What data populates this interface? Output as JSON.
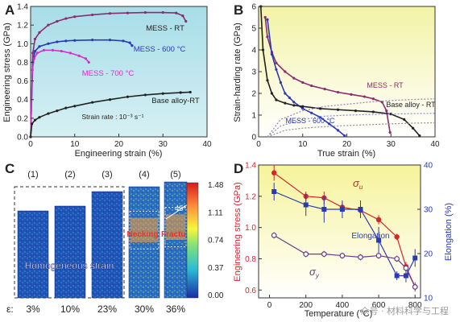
{
  "panels": {
    "A": "A",
    "B": "B",
    "C": "C",
    "D": "D"
  },
  "watermark": "众号 · 材料科学与工程",
  "chart_data": [
    {
      "id": "A",
      "type": "line",
      "xlabel": "Engineering strain (%)",
      "ylabel": "Engineering stress (GPa)",
      "xlim": [
        0,
        40
      ],
      "ylim": [
        0,
        1.4
      ],
      "xticks": [
        "0",
        "10",
        "20",
        "30",
        "40"
      ],
      "yticks": [
        "0.0",
        "0.2",
        "0.4",
        "0.6",
        "0.8",
        "1.0",
        "1.2",
        "1.4"
      ],
      "grid": false,
      "annotation": "Strain rate : 10⁻³ s⁻¹",
      "series": [
        {
          "name": "MESS - RT",
          "color": "#8b2c6e",
          "x": [
            0,
            0.5,
            1,
            2,
            4,
            6,
            8,
            10,
            14,
            18,
            22,
            26,
            30,
            33,
            34.5,
            35.2
          ],
          "y": [
            0,
            0.9,
            1.05,
            1.12,
            1.2,
            1.24,
            1.27,
            1.29,
            1.31,
            1.325,
            1.33,
            1.335,
            1.335,
            1.33,
            1.3,
            1.24
          ]
        },
        {
          "name": "MESS - 600 °C",
          "color": "#2a3ab5",
          "x": [
            0,
            0.5,
            1,
            2,
            4,
            6,
            8,
            10,
            14,
            18,
            21,
            22.5,
            23
          ],
          "y": [
            0,
            0.8,
            0.92,
            0.97,
            1.0,
            1.02,
            1.03,
            1.035,
            1.04,
            1.04,
            1.03,
            1.01,
            0.98
          ]
        },
        {
          "name": "MESS - 700 °C",
          "color": "#d62fc9",
          "x": [
            0,
            0.4,
            0.8,
            1.5,
            3,
            5,
            7,
            9,
            11,
            12.5,
            13.2
          ],
          "y": [
            0,
            0.72,
            0.84,
            0.9,
            0.93,
            0.93,
            0.92,
            0.9,
            0.87,
            0.84,
            0.8
          ]
        },
        {
          "name": "Base alloy-RT",
          "color": "#222222",
          "x": [
            0,
            0.3,
            1,
            2,
            4,
            6,
            8,
            10,
            14,
            18,
            22,
            26,
            30,
            34,
            36.2
          ],
          "y": [
            0,
            0.14,
            0.18,
            0.21,
            0.25,
            0.28,
            0.31,
            0.33,
            0.37,
            0.4,
            0.43,
            0.45,
            0.465,
            0.475,
            0.48
          ]
        }
      ]
    },
    {
      "id": "B",
      "type": "line",
      "xlabel": "True strain (%)",
      "ylabel": "Strain-harding rate (GPa)",
      "xlim": [
        0,
        40
      ],
      "ylim": [
        0,
        6
      ],
      "xticks": [
        "0",
        "10",
        "20",
        "30",
        "40"
      ],
      "yticks": [
        "0",
        "1",
        "2",
        "3",
        "4",
        "5",
        "6"
      ],
      "grid": false,
      "series": [
        {
          "name": "MESS - RT",
          "color": "#8b2c6e",
          "x": [
            1.5,
            2,
            3,
            4,
            6,
            8,
            10,
            12,
            15,
            18,
            21,
            24,
            26,
            28,
            29,
            29.8
          ],
          "y": [
            5.5,
            4.6,
            3.9,
            3.4,
            3.0,
            2.7,
            2.5,
            2.35,
            2.2,
            2.05,
            1.95,
            1.85,
            1.75,
            1.6,
            1.2,
            0.2
          ]
        },
        {
          "name": "MESS - 600 °C",
          "color": "#2a3ab5",
          "x": [
            2,
            3,
            4,
            5,
            6,
            7,
            8,
            10,
            12,
            14,
            16,
            18,
            19.5
          ],
          "y": [
            5.4,
            3.8,
            3.1,
            2.5,
            2.0,
            1.8,
            1.6,
            1.3,
            1.1,
            0.9,
            0.6,
            0.3,
            0.05
          ]
        },
        {
          "name": "Base alloy-RT",
          "color": "#222222",
          "x": [
            0.5,
            1,
            2,
            3,
            4,
            6,
            8,
            10,
            14,
            18,
            22,
            26,
            30,
            33,
            35,
            36.5
          ],
          "y": [
            6.0,
            4.0,
            2.6,
            2.0,
            1.7,
            1.55,
            1.45,
            1.4,
            1.3,
            1.25,
            1.2,
            1.15,
            1.05,
            0.8,
            0.4,
            0.05
          ]
        },
        {
          "name": "",
          "color": "#a080b0",
          "dashed": true,
          "x": [
            2,
            5,
            10,
            15,
            20,
            25,
            30,
            35,
            40
          ],
          "y": [
            0,
            0.8,
            1.2,
            1.4,
            1.5,
            1.6,
            1.67,
            1.72,
            1.75
          ]
        },
        {
          "name": "",
          "color": "#8090d0",
          "dashed": true,
          "x": [
            2,
            5,
            10,
            15,
            20,
            25,
            30,
            35,
            40
          ],
          "y": [
            0,
            0.5,
            0.8,
            0.95,
            1.0,
            1.03,
            1.05,
            1.07,
            1.08
          ]
        },
        {
          "name": "",
          "color": "#909090",
          "dashed": true,
          "x": [
            2,
            6,
            10,
            15,
            20,
            25,
            30,
            35,
            40
          ],
          "y": [
            0,
            0.3,
            0.4,
            0.47,
            0.52,
            0.56,
            0.6,
            0.63,
            0.65
          ]
        }
      ],
      "labels": [
        "MESS - RT",
        "Base alloy - RT",
        "MESS - 600 °C"
      ]
    },
    {
      "id": "D",
      "type": "line",
      "xlabel": "Temperature (°C)",
      "ylabel": "Engineering stress (GPa)",
      "y2label": "Elongation (%)",
      "xlim": [
        -60,
        830
      ],
      "ylim": [
        0.55,
        1.4
      ],
      "y2lim": [
        10,
        40
      ],
      "xticks": [
        "0",
        "200",
        "400",
        "600",
        "800"
      ],
      "yticks": [
        "0.6",
        "0.8",
        "1.0",
        "1.2",
        "1.4"
      ],
      "y2ticks": [
        "10",
        "20",
        "30",
        "40"
      ],
      "grid": false,
      "series": [
        {
          "name": "σu",
          "color": "#d1282f",
          "axis": "left",
          "x": [
            25,
            200,
            300,
            400,
            500,
            600,
            700,
            750,
            800
          ],
          "y": [
            1.35,
            1.2,
            1.19,
            1.13,
            1.11,
            1.05,
            0.94,
            0.75,
            0.62
          ],
          "err": [
            0.05,
            0.03,
            0.04,
            0.03,
            0.03,
            0.03,
            0.02,
            0.03,
            0.03
          ]
        },
        {
          "name": "Elongation",
          "color": "#2a3ab5",
          "axis": "right",
          "x": [
            25,
            200,
            300,
            400,
            500,
            600,
            700,
            750,
            800
          ],
          "y": [
            34,
            31,
            30,
            30,
            30,
            23,
            15,
            15,
            19
          ],
          "err": [
            2,
            2.5,
            3,
            2,
            2,
            3,
            1,
            1.5,
            2
          ]
        },
        {
          "name": "σy",
          "color": "#6a3a8e",
          "axis": "left",
          "x": [
            25,
            200,
            300,
            400,
            500,
            600,
            700,
            750,
            800
          ],
          "y": [
            0.95,
            0.83,
            0.83,
            0.82,
            0.81,
            0.82,
            0.8,
            0.74,
            0.62
          ],
          "err": [
            0.02,
            0.02,
            0.02,
            0.02,
            0.02,
            0.02,
            0.02,
            0.02,
            0.02
          ]
        }
      ],
      "labels": {
        "sigma_u": "σ",
        "sigma_u_sub": "u",
        "sigma_y": "σ",
        "sigma_y_sub": "y",
        "elong": "Elongation"
      }
    },
    {
      "id": "C",
      "type": "heatmap",
      "specimens": [
        "(1)",
        "(2)",
        "(3)",
        "(4)",
        "(5)"
      ],
      "strains": [
        "3%",
        "10%",
        "23%",
        "30%",
        "36%"
      ],
      "strain_prefix": "ε:",
      "colorbar": [
        "1.48",
        "1.11",
        "0.74",
        "0.37",
        "0.00"
      ],
      "texts": {
        "homogeneous": "Homogeneous strain",
        "necking": "Necking",
        "fracture": "Fracture",
        "angle": "45°"
      }
    }
  ]
}
